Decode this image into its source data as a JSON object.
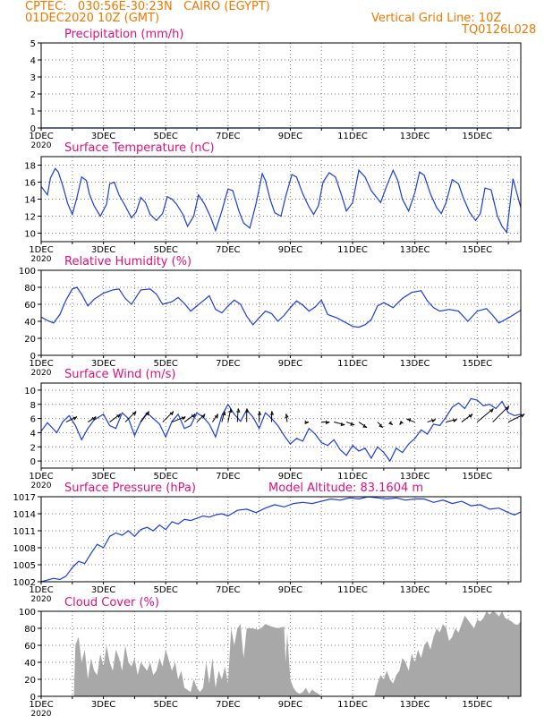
{
  "header": {
    "line1": "CPTEC:   030:56E-30:23N   CAIRO (EGYPT)",
    "line2": "01DEC2020 10Z (GMT)",
    "right1": "Vertical Grid Line: 10Z",
    "right2": "TQ0126L028"
  },
  "colors": {
    "header": "#f07800",
    "title": "#e0107a",
    "line": "#1a3de0",
    "cloud": "#a8a8a8",
    "wind": "#000000"
  },
  "x_axis": {
    "day_ticks": [
      "1DEC",
      "3DEC",
      "5DEC",
      "7DEC",
      "9DEC",
      "11DEC",
      "13DEC",
      "15DEC"
    ],
    "day_values": [
      1,
      3,
      5,
      7,
      9,
      11,
      13,
      15
    ],
    "year_label": "2020",
    "xlim": [
      1,
      16.4
    ]
  },
  "chart_data": [
    {
      "type": "line",
      "title": "Precipitation (mm/h)",
      "ylim": [
        0,
        5
      ],
      "yticks": [
        "0",
        "1",
        "2",
        "3",
        "4",
        "5"
      ],
      "series": [
        {
          "x": [
            1,
            16.4
          ],
          "y": [
            0,
            0
          ]
        }
      ]
    },
    {
      "type": "line",
      "title": "Surface Temperature (nC)",
      "ylim": [
        9,
        19
      ],
      "yticks": [
        "10",
        "12",
        "14",
        "16",
        "18"
      ],
      "ytick_values": [
        10,
        12,
        14,
        16,
        18
      ],
      "series": [
        {
          "x": [
            1.0,
            1.2,
            1.3,
            1.45,
            1.55,
            1.7,
            1.85,
            2.0,
            2.15,
            2.3,
            2.45,
            2.55,
            2.7,
            2.9,
            3.1,
            3.2,
            3.35,
            3.5,
            3.7,
            3.9,
            4.05,
            4.2,
            4.35,
            4.5,
            4.7,
            4.9,
            5.05,
            5.2,
            5.35,
            5.55,
            5.7,
            5.9,
            6.05,
            6.25,
            6.45,
            6.6,
            6.8,
            7.0,
            7.15,
            7.35,
            7.5,
            7.7,
            7.9,
            8.1,
            8.2,
            8.35,
            8.5,
            8.7,
            8.85,
            9.05,
            9.2,
            9.4,
            9.6,
            9.75,
            9.9,
            10.05,
            10.25,
            10.45,
            10.65,
            10.8,
            11.0,
            11.2,
            11.4,
            11.6,
            11.75,
            11.9,
            12.1,
            12.3,
            12.45,
            12.6,
            12.8,
            13.0,
            13.15,
            13.3,
            13.5,
            13.7,
            13.85,
            14.0,
            14.2,
            14.4,
            14.55,
            14.75,
            14.95,
            15.1,
            15.25,
            15.45,
            15.65,
            15.8,
            15.95,
            16.15,
            16.4
          ],
          "y": [
            15.5,
            14.5,
            16.5,
            17.6,
            17.2,
            15.5,
            13.5,
            12.2,
            14.2,
            16.6,
            16.2,
            14.6,
            13.2,
            12.0,
            13.4,
            15.8,
            16.0,
            14.5,
            13.2,
            11.8,
            12.5,
            14.2,
            13.6,
            12.2,
            11.5,
            12.3,
            14.3,
            14.0,
            13.4,
            12.2,
            10.8,
            12.0,
            14.5,
            13.4,
            11.8,
            10.3,
            12.6,
            15.2,
            15.0,
            12.6,
            11.2,
            10.6,
            13.5,
            17.0,
            16.2,
            14.0,
            12.4,
            12.0,
            14.3,
            16.9,
            16.6,
            14.6,
            13.1,
            12.2,
            13.2,
            16.0,
            17.1,
            16.6,
            14.4,
            12.6,
            13.6,
            17.4,
            16.6,
            15.0,
            14.3,
            13.6,
            15.6,
            17.4,
            16.2,
            14.0,
            12.6,
            14.8,
            17.2,
            16.8,
            14.6,
            13.0,
            12.3,
            13.6,
            16.3,
            15.8,
            14.2,
            12.5,
            11.5,
            12.3,
            15.3,
            15.1,
            12.0,
            10.8,
            10.1,
            16.4,
            13.0
          ]
        }
      ]
    },
    {
      "type": "line",
      "title": "Relative Humidity (%)",
      "ylim": [
        0,
        100
      ],
      "yticks": [
        "0",
        "20",
        "40",
        "60",
        "80",
        "100"
      ],
      "series": [
        {
          "x": [
            1.0,
            1.2,
            1.4,
            1.6,
            1.8,
            2.0,
            2.15,
            2.3,
            2.5,
            2.7,
            3.0,
            3.3,
            3.5,
            3.7,
            3.9,
            4.2,
            4.5,
            4.7,
            4.9,
            5.2,
            5.4,
            5.6,
            5.8,
            6.0,
            6.2,
            6.4,
            6.6,
            6.8,
            7.0,
            7.2,
            7.4,
            7.6,
            7.8,
            8.0,
            8.2,
            8.4,
            8.6,
            8.8,
            9.0,
            9.2,
            9.4,
            9.6,
            9.8,
            10.0,
            10.2,
            10.5,
            10.8,
            11.0,
            11.2,
            11.4,
            11.6,
            11.8,
            12.0,
            12.3,
            12.6,
            12.9,
            13.2,
            13.4,
            13.6,
            13.8,
            14.1,
            14.4,
            14.7,
            15.0,
            15.3,
            15.5,
            15.7,
            16.0,
            16.4
          ],
          "y": [
            45,
            41,
            38,
            48,
            65,
            78,
            80,
            72,
            58,
            66,
            73,
            77,
            78,
            67,
            60,
            77,
            78,
            72,
            60,
            63,
            68,
            61,
            52,
            58,
            64,
            70,
            54,
            50,
            58,
            65,
            60,
            46,
            36,
            44,
            52,
            49,
            40,
            47,
            56,
            64,
            59,
            52,
            57,
            65,
            48,
            44,
            38,
            34,
            33,
            36,
            42,
            58,
            62,
            56,
            67,
            74,
            76,
            64,
            56,
            52,
            54,
            52,
            40,
            52,
            55,
            47,
            38,
            44,
            53
          ]
        }
      ]
    },
    {
      "type": "line",
      "title": "Surface Wind (m/s)",
      "ylim": [
        -1,
        11
      ],
      "yticks": [
        "0",
        "2",
        "4",
        "6",
        "8",
        "10"
      ],
      "ytick_values": [
        0,
        2,
        4,
        6,
        8,
        10
      ],
      "series": [
        {
          "x": [
            1.0,
            1.2,
            1.5,
            1.7,
            1.9,
            2.1,
            2.3,
            2.5,
            2.7,
            3.0,
            3.2,
            3.4,
            3.6,
            3.8,
            4.0,
            4.2,
            4.4,
            4.6,
            4.8,
            5.0,
            5.2,
            5.4,
            5.6,
            5.8,
            6.0,
            6.2,
            6.4,
            6.6,
            6.8,
            7.0,
            7.2,
            7.4,
            7.6,
            7.8,
            8.0,
            8.2,
            8.4,
            8.6,
            8.8,
            9.0,
            9.2,
            9.4,
            9.6,
            9.8,
            10.0,
            10.2,
            10.4,
            10.6,
            10.8,
            11.0,
            11.2,
            11.4,
            11.6,
            11.8,
            12.0,
            12.2,
            12.4,
            12.6,
            12.8,
            13.0,
            13.2,
            13.4,
            13.6,
            13.8,
            14.0,
            14.2,
            14.4,
            14.6,
            14.8,
            15.0,
            15.2,
            15.4,
            15.6,
            15.8,
            16.0,
            16.2,
            16.4
          ],
          "y": [
            4.2,
            5.4,
            4.0,
            5.6,
            6.4,
            5.0,
            3.0,
            4.6,
            5.8,
            6.6,
            5.0,
            4.6,
            6.8,
            6.0,
            3.6,
            5.6,
            6.8,
            6.0,
            5.2,
            3.4,
            5.6,
            6.6,
            4.6,
            5.0,
            6.8,
            6.2,
            5.2,
            3.4,
            6.4,
            8.0,
            6.6,
            5.6,
            7.2,
            6.2,
            4.6,
            6.8,
            6.0,
            5.0,
            3.6,
            2.4,
            3.2,
            2.8,
            4.6,
            3.8,
            2.6,
            2.2,
            3.0,
            1.6,
            0.8,
            2.2,
            1.4,
            1.8,
            0.4,
            2.0,
            1.2,
            0.0,
            1.8,
            1.2,
            2.4,
            3.2,
            4.4,
            3.8,
            5.2,
            5.0,
            6.2,
            7.6,
            8.2,
            7.4,
            8.8,
            8.6,
            7.8,
            8.0,
            7.4,
            8.4,
            6.8,
            6.4,
            6.6
          ]
        }
      ],
      "arrows": {
        "x": [
          1.8,
          2.5,
          3.2,
          3.7,
          4.2,
          4.9,
          5.2,
          5.6,
          6.0,
          6.5,
          6.8,
          7.0,
          7.3,
          7.6,
          8.0,
          8.4,
          8.9,
          9.5,
          10.0,
          10.4,
          10.8,
          11.2,
          11.8,
          12.2,
          12.6,
          13.0,
          13.4,
          14.0,
          14.5,
          15.0,
          15.5,
          16.0
        ],
        "u": [
          4,
          3,
          4,
          4,
          3,
          4,
          5,
          4,
          3,
          2,
          1,
          1,
          0.3,
          0,
          0,
          0,
          -0.5,
          1,
          3,
          4,
          3,
          3,
          2,
          1,
          -1,
          -3,
          3,
          4,
          4,
          6,
          6,
          6
        ],
        "v": [
          2,
          2,
          3,
          4,
          4,
          4,
          2,
          3,
          3,
          3,
          4,
          5,
          5,
          5,
          4,
          4,
          3,
          0,
          0,
          -1,
          -1,
          -2,
          -2,
          -1,
          -1,
          1,
          1,
          1,
          3,
          5,
          6,
          3
        ]
      }
    },
    {
      "type": "line",
      "title": "Surface Pressure (hPa)",
      "annotation": "Model Altitude: 83.1604 m",
      "ylim": [
        1002,
        1017
      ],
      "yticks": [
        "1002",
        "1005",
        "1008",
        "1011",
        "1014",
        "1017"
      ],
      "ytick_values": [
        1002,
        1005,
        1008,
        1011,
        1014,
        1017
      ],
      "series": [
        {
          "x": [
            1.0,
            1.2,
            1.4,
            1.6,
            1.8,
            2.0,
            2.2,
            2.4,
            2.6,
            2.8,
            3.0,
            3.2,
            3.4,
            3.6,
            3.8,
            4.0,
            4.2,
            4.4,
            4.6,
            4.8,
            5.0,
            5.2,
            5.4,
            5.6,
            5.8,
            6.0,
            6.2,
            6.4,
            6.6,
            6.8,
            7.0,
            7.3,
            7.6,
            7.9,
            8.2,
            8.5,
            8.8,
            9.1,
            9.4,
            9.7,
            10.0,
            10.3,
            10.6,
            10.9,
            11.2,
            11.5,
            11.8,
            12.1,
            12.4,
            12.7,
            13.0,
            13.3,
            13.6,
            13.9,
            14.2,
            14.5,
            14.8,
            15.1,
            15.4,
            15.7,
            16.0,
            16.2,
            16.4
          ],
          "y": [
            1002.0,
            1002.3,
            1002.6,
            1002.4,
            1003.0,
            1004.5,
            1005.6,
            1005.2,
            1007.0,
            1008.6,
            1008.0,
            1010.0,
            1010.6,
            1010.2,
            1011.0,
            1010.0,
            1011.2,
            1011.6,
            1011.0,
            1012.0,
            1011.2,
            1012.6,
            1012.2,
            1013.0,
            1012.8,
            1013.2,
            1013.6,
            1013.4,
            1013.8,
            1014.0,
            1013.6,
            1014.6,
            1014.8,
            1014.2,
            1015.0,
            1015.6,
            1015.2,
            1015.8,
            1016.0,
            1015.8,
            1016.2,
            1016.6,
            1016.4,
            1016.8,
            1016.6,
            1017.0,
            1016.8,
            1016.6,
            1016.8,
            1016.4,
            1016.6,
            1016.6,
            1016.0,
            1016.4,
            1015.8,
            1016.2,
            1015.4,
            1015.6,
            1014.8,
            1015.0,
            1014.2,
            1013.8,
            1014.3
          ]
        }
      ]
    },
    {
      "type": "area",
      "title": "Cloud Cover (%)",
      "ylim": [
        0,
        100
      ],
      "yticks": [
        "0",
        "20",
        "40",
        "60",
        "80",
        "100"
      ],
      "series": [
        {
          "x": [
            1.0,
            2.05,
            2.1,
            2.2,
            2.3,
            2.4,
            2.5,
            2.6,
            2.7,
            2.8,
            2.9,
            3.0,
            3.1,
            3.2,
            3.3,
            3.4,
            3.5,
            3.6,
            3.7,
            3.8,
            3.9,
            4.0,
            4.1,
            4.2,
            4.3,
            4.4,
            4.5,
            4.6,
            4.7,
            4.8,
            4.9,
            5.0,
            5.2,
            5.3,
            5.4,
            5.5,
            5.6,
            5.8,
            5.9,
            6.0,
            6.1,
            6.2,
            6.3,
            6.4,
            6.5,
            6.6,
            6.7,
            6.8,
            6.9,
            7.0,
            7.1,
            7.2,
            7.3,
            7.4,
            7.5,
            7.6,
            7.8,
            8.0,
            8.2,
            8.4,
            8.6,
            8.8,
            8.85,
            8.9,
            9.0,
            9.1,
            9.2,
            9.3,
            9.4,
            9.5,
            9.6,
            9.7,
            9.8,
            9.9,
            10.0,
            11.7,
            11.8,
            11.9,
            12.0,
            12.1,
            12.2,
            12.3,
            12.4,
            12.5,
            12.6,
            12.7,
            12.8,
            12.9,
            13.0,
            13.1,
            13.2,
            13.3,
            13.4,
            13.5,
            13.6,
            13.7,
            13.8,
            13.9,
            14.0,
            14.1,
            14.2,
            14.3,
            14.4,
            14.5,
            14.6,
            14.7,
            14.8,
            14.9,
            15.0,
            15.1,
            15.2,
            15.3,
            15.4,
            15.5,
            15.6,
            15.7,
            15.8,
            15.9,
            16.0,
            16.1,
            16.2,
            16.3,
            16.4
          ],
          "y": [
            0,
            0,
            60,
            70,
            40,
            55,
            20,
            45,
            30,
            25,
            50,
            35,
            60,
            40,
            30,
            55,
            45,
            30,
            60,
            40,
            35,
            45,
            25,
            40,
            35,
            30,
            40,
            25,
            30,
            45,
            35,
            55,
            30,
            40,
            20,
            30,
            10,
            5,
            20,
            10,
            5,
            10,
            40,
            15,
            45,
            10,
            30,
            20,
            35,
            15,
            80,
            60,
            80,
            85,
            45,
            80,
            80,
            78,
            85,
            82,
            80,
            82,
            40,
            75,
            20,
            10,
            5,
            3,
            5,
            10,
            3,
            8,
            5,
            3,
            0,
            0,
            15,
            25,
            20,
            30,
            20,
            15,
            25,
            30,
            45,
            40,
            30,
            50,
            40,
            55,
            45,
            60,
            65,
            55,
            70,
            80,
            75,
            85,
            80,
            65,
            70,
            80,
            75,
            85,
            95,
            90,
            85,
            80,
            90,
            88,
            92,
            100,
            96,
            100,
            98,
            94,
            100,
            92,
            90,
            88,
            85,
            84,
            88
          ]
        }
      ]
    }
  ]
}
